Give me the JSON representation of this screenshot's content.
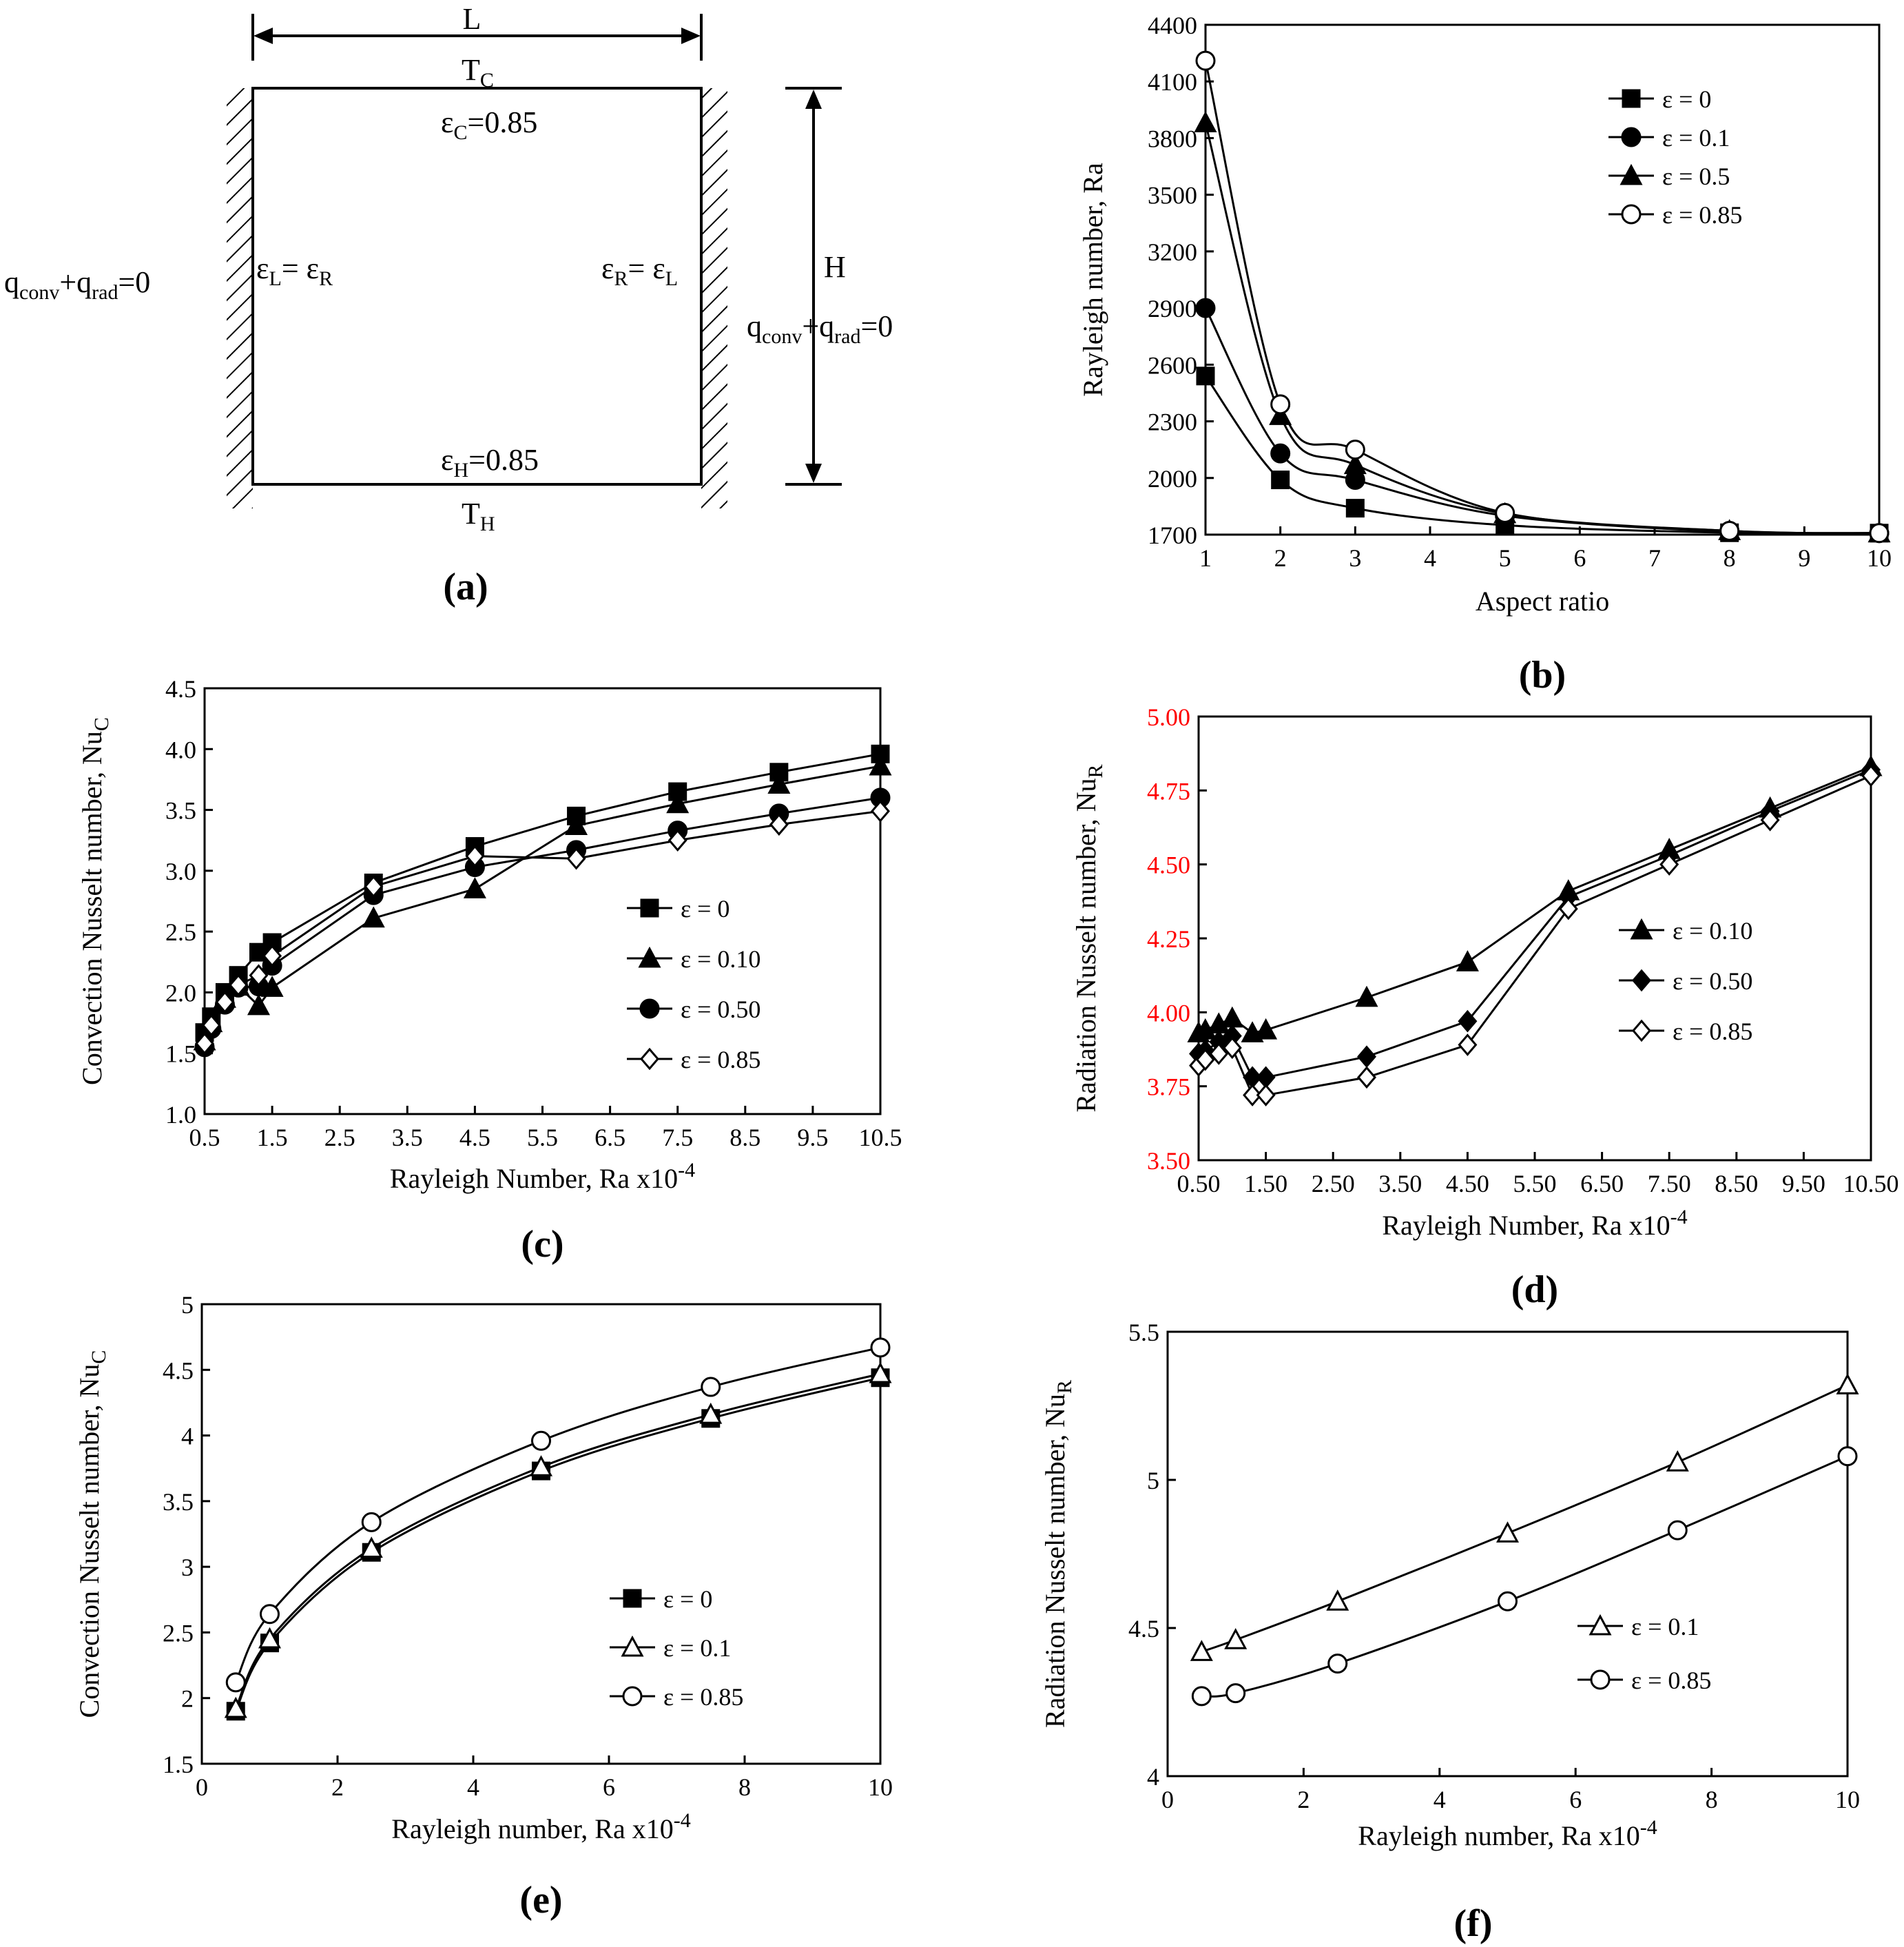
{
  "diagram": {
    "label": "(a)",
    "top_dim": "L",
    "top_temp": "T",
    "top_temp_sub": "C",
    "top_eps": "ε",
    "top_eps_sub": "C",
    "top_eps_val": "=0.85",
    "bottom_eps": "ε",
    "bottom_eps_sub": "H",
    "bottom_eps_val": "=0.85",
    "bottom_temp": "T",
    "bottom_temp_sub": "H",
    "left_eps": "ε",
    "left_eps_sub": "L",
    "left_eps_mid": "= ε",
    "left_eps_sub2": "R",
    "right_eps": "ε",
    "right_eps_sub": "R",
    "right_eps_mid": "= ε",
    "right_eps_sub2": "L",
    "height_dim": "H",
    "bc_q": "q",
    "bc_conv_sub": "conv",
    "bc_plus": "+q",
    "bc_rad_sub": "rad",
    "bc_end": "=0"
  },
  "chart_data": [
    {
      "id": "b",
      "type": "line",
      "panel_label": "(b)",
      "xlabel": "Aspect ratio",
      "ylabel": "Rayleigh number, Ra",
      "xlim": [
        1,
        10
      ],
      "ylim": [
        1700,
        4400
      ],
      "xticks": [
        1,
        2,
        3,
        4,
        5,
        6,
        7,
        8,
        9,
        10
      ],
      "yticks": [
        1700,
        2000,
        2300,
        2600,
        2900,
        3200,
        3500,
        3800,
        4100,
        4400
      ],
      "tick_color": "#000000",
      "legend_position": "top-right",
      "series": [
        {
          "name": "ε = 0",
          "marker": "square-filled",
          "x": [
            1,
            2,
            3,
            5,
            8,
            10
          ],
          "y": [
            2540,
            1990,
            1840,
            1750,
            1710,
            1708
          ]
        },
        {
          "name": "ε = 0.1",
          "marker": "circle-filled",
          "x": [
            1,
            2,
            3,
            5,
            8,
            10
          ],
          "y": [
            2900,
            2130,
            1990,
            1800,
            1715,
            1708
          ]
        },
        {
          "name": "ε = 0.5",
          "marker": "triangle-filled",
          "x": [
            1,
            2,
            3,
            5,
            8,
            10
          ],
          "y": [
            3880,
            2330,
            2070,
            1810,
            1720,
            1708
          ]
        },
        {
          "name": "ε = 0.85",
          "marker": "circle-open",
          "x": [
            1,
            2,
            3,
            5,
            8,
            10
          ],
          "y": [
            4210,
            2390,
            2150,
            1815,
            1720,
            1708
          ]
        }
      ]
    },
    {
      "id": "c",
      "type": "line",
      "panel_label": "(c)",
      "xlabel": "Rayleigh Number, Ra x10",
      "xlabel_sup": "-4",
      "ylabel": "Convection Nusselt number, Nu",
      "ylabel_sub": "C",
      "xlim": [
        0.5,
        10.5
      ],
      "ylim": [
        1.0,
        4.5
      ],
      "xticks": [
        0.5,
        1.5,
        2.5,
        3.5,
        4.5,
        5.5,
        6.5,
        7.5,
        8.5,
        9.5,
        10.5
      ],
      "yticks": [
        1.0,
        1.5,
        2.0,
        2.5,
        3.0,
        3.5,
        4.0,
        4.5
      ],
      "tick_decimals": 1,
      "tick_color": "#000000",
      "legend_position": "center-right",
      "series": [
        {
          "name": "ε = 0",
          "marker": "square-filled",
          "x": [
            0.5,
            0.6,
            0.8,
            1.0,
            1.3,
            1.5,
            3.0,
            4.5,
            6.0,
            7.5,
            9.0,
            10.5
          ],
          "y": [
            1.67,
            1.8,
            2.0,
            2.14,
            2.33,
            2.41,
            2.9,
            3.2,
            3.45,
            3.65,
            3.81,
            3.96
          ]
        },
        {
          "name": "ε = 0.10",
          "marker": "triangle-filled",
          "x": [
            0.5,
            0.6,
            0.8,
            1.0,
            1.3,
            1.5,
            3.0,
            4.5,
            6.0,
            7.5,
            9.0,
            10.5
          ],
          "y": [
            1.6,
            1.75,
            1.95,
            2.05,
            1.89,
            2.04,
            2.61,
            2.85,
            3.37,
            3.55,
            3.71,
            3.86
          ]
        },
        {
          "name": "ε = 0.50",
          "marker": "circle-filled",
          "x": [
            0.5,
            0.6,
            0.8,
            1.0,
            1.3,
            1.5,
            3.0,
            4.5,
            6.0,
            7.5,
            9.0,
            10.5
          ],
          "y": [
            1.55,
            1.7,
            1.9,
            2.04,
            2.05,
            2.22,
            2.8,
            3.03,
            3.17,
            3.33,
            3.47,
            3.6
          ]
        },
        {
          "name": "ε = 0.85",
          "marker": "diamond-open",
          "x": [
            0.5,
            0.6,
            0.8,
            1.0,
            1.3,
            1.5,
            3.0,
            4.5,
            6.0,
            7.5,
            9.0,
            10.5
          ],
          "y": [
            1.58,
            1.73,
            1.92,
            2.06,
            2.14,
            2.3,
            2.87,
            3.12,
            3.1,
            3.25,
            3.38,
            3.49
          ]
        }
      ]
    },
    {
      "id": "d",
      "type": "line",
      "panel_label": "(d)",
      "xlabel": "Rayleigh Number, Ra x10",
      "xlabel_sup": "-4",
      "ylabel": "Radiation Nusselt number, Nu",
      "ylabel_sub": "R",
      "xlim": [
        0.5,
        10.5
      ],
      "ylim": [
        3.5,
        5.0
      ],
      "xticks": [
        0.5,
        1.5,
        2.5,
        3.5,
        4.5,
        5.5,
        6.5,
        7.5,
        8.5,
        9.5,
        10.5
      ],
      "yticks": [
        3.5,
        3.75,
        4.0,
        4.25,
        4.5,
        4.75,
        5.0
      ],
      "tick_decimals": 2,
      "tick_color": "#ff0000",
      "legend_position": "center-right",
      "series": [
        {
          "name": "ε = 0.10",
          "marker": "triangle-filled",
          "x": [
            0.5,
            0.6,
            0.8,
            1.0,
            1.3,
            1.5,
            3.0,
            4.5,
            6.0,
            7.5,
            9.0,
            10.5
          ],
          "y": [
            3.93,
            3.94,
            3.96,
            3.98,
            3.93,
            3.94,
            4.05,
            4.17,
            4.41,
            4.55,
            4.69,
            4.83
          ]
        },
        {
          "name": "ε = 0.50",
          "marker": "diamond-filled",
          "x": [
            0.5,
            0.6,
            0.8,
            1.0,
            1.3,
            1.5,
            3.0,
            4.5,
            6.0,
            7.5,
            9.0,
            10.5
          ],
          "y": [
            3.86,
            3.87,
            3.9,
            3.92,
            3.78,
            3.78,
            3.85,
            3.97,
            4.39,
            4.53,
            4.68,
            4.82
          ]
        },
        {
          "name": "ε = 0.85",
          "marker": "diamond-open",
          "x": [
            0.5,
            0.6,
            0.8,
            1.0,
            1.3,
            1.5,
            3.0,
            4.5,
            6.0,
            7.5,
            9.0,
            10.5
          ],
          "y": [
            3.82,
            3.84,
            3.86,
            3.88,
            3.72,
            3.72,
            3.78,
            3.89,
            4.35,
            4.5,
            4.65,
            4.8
          ]
        }
      ]
    },
    {
      "id": "e",
      "type": "line",
      "panel_label": "(e)",
      "xlabel": "Rayleigh number, Ra x10",
      "xlabel_sup": "-4",
      "ylabel": "Convection Nusselt number, Nu",
      "ylabel_sub": "C",
      "xlim": [
        0,
        10
      ],
      "ylim": [
        1.5,
        5
      ],
      "xticks": [
        0,
        2,
        4,
        6,
        8,
        10
      ],
      "yticks": [
        1.5,
        2,
        2.5,
        3,
        3.5,
        4,
        4.5,
        5
      ],
      "tick_color": "#000000",
      "legend_position": "bottom-right",
      "series": [
        {
          "name": "ε = 0",
          "marker": "square-filled",
          "x": [
            0.5,
            1,
            2.5,
            5,
            7.5,
            10
          ],
          "y": [
            1.9,
            2.42,
            3.11,
            3.73,
            4.13,
            4.44
          ]
        },
        {
          "name": "ε = 0.1",
          "marker": "triangle-open",
          "x": [
            0.5,
            1,
            2.5,
            5,
            7.5,
            10
          ],
          "y": [
            1.92,
            2.45,
            3.14,
            3.76,
            4.16,
            4.47
          ]
        },
        {
          "name": "ε = 0.85",
          "marker": "circle-open",
          "x": [
            0.5,
            1,
            2.5,
            5,
            7.5,
            10
          ],
          "y": [
            2.12,
            2.64,
            3.34,
            3.96,
            4.37,
            4.67
          ]
        }
      ]
    },
    {
      "id": "f",
      "type": "line",
      "panel_label": "(f)",
      "xlabel": "Rayleigh number, Ra x10",
      "xlabel_sup": "-4",
      "ylabel": "Radiation Nusselt number, Nu",
      "ylabel_sub": "R",
      "xlim": [
        0,
        10
      ],
      "ylim": [
        4,
        5.5
      ],
      "xticks": [
        0,
        2,
        4,
        6,
        8,
        10
      ],
      "yticks": [
        4,
        4.5,
        5,
        5.5
      ],
      "tick_color": "#000000",
      "legend_position": "center-right",
      "series": [
        {
          "name": "ε = 0.1",
          "marker": "triangle-open",
          "x": [
            0.5,
            1,
            2.5,
            5,
            7.5,
            10
          ],
          "y": [
            4.42,
            4.46,
            4.59,
            4.82,
            5.06,
            5.32
          ]
        },
        {
          "name": "ε = 0.85",
          "marker": "circle-open",
          "x": [
            0.5,
            1,
            2.5,
            5,
            7.5,
            10
          ],
          "y": [
            4.27,
            4.28,
            4.38,
            4.59,
            4.83,
            5.08
          ]
        }
      ]
    }
  ]
}
